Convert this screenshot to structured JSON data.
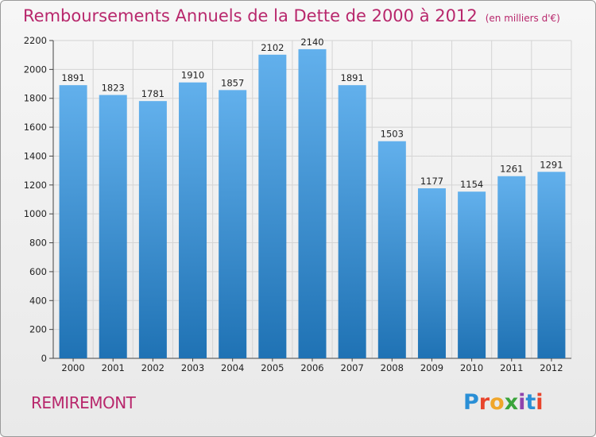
{
  "header": {
    "title": "Remboursements Annuels de la Dette de 2000 à 2012",
    "unit": "(en milliers d'€)"
  },
  "footer": {
    "town": "REMIREMONT",
    "logo_text": "Proxiti"
  },
  "colors": {
    "title": "#b8276c",
    "bar_top": "#62b0ec",
    "bar_bottom": "#1f72b4",
    "grid": "#d4d4d4"
  },
  "chart_data": {
    "type": "bar",
    "title": "Remboursements Annuels de la Dette de 2000 à 2012",
    "subtitle": "(en milliers d'€)",
    "xlabel": "",
    "ylabel": "",
    "ylim": [
      0,
      2200
    ],
    "yticks": [
      0,
      200,
      400,
      600,
      800,
      1000,
      1200,
      1400,
      1600,
      1800,
      2000,
      2200
    ],
    "grid": true,
    "categories": [
      "2000",
      "2001",
      "2002",
      "2003",
      "2004",
      "2005",
      "2006",
      "2007",
      "2008",
      "2009",
      "2010",
      "2011",
      "2012"
    ],
    "values": [
      1891,
      1823,
      1781,
      1910,
      1857,
      2102,
      2140,
      1891,
      1503,
      1177,
      1154,
      1261,
      1291
    ]
  }
}
